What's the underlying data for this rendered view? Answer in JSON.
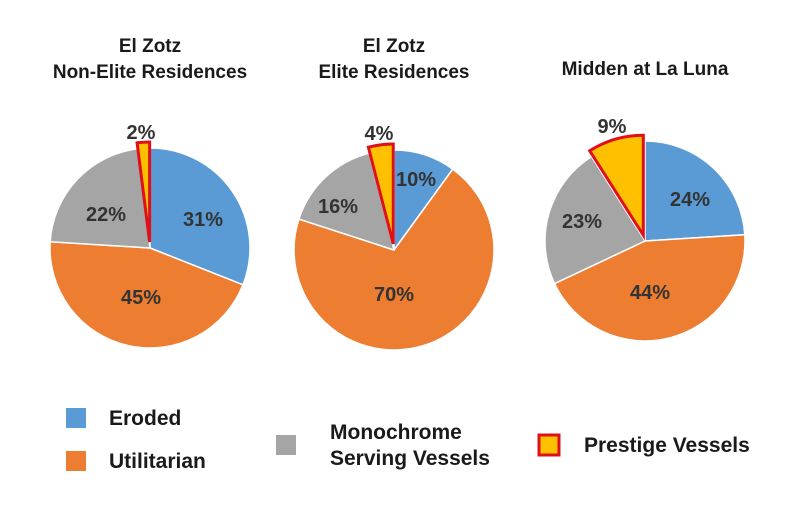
{
  "chart_data": [
    {
      "type": "pie",
      "title": [
        "El Zotz",
        "Non-Elite Residences"
      ],
      "slices": [
        {
          "category": "Eroded",
          "value": 31,
          "label": "31%"
        },
        {
          "category": "Utilitarian",
          "value": 45,
          "label": "45%"
        },
        {
          "category": "Monochrome Serving Vessels",
          "value": 22,
          "label": "22%"
        },
        {
          "category": "Prestige Vessels",
          "value": 2,
          "label": "2%"
        }
      ]
    },
    {
      "type": "pie",
      "title": [
        "El Zotz",
        "Elite Residences"
      ],
      "slices": [
        {
          "category": "Eroded",
          "value": 10,
          "label": "10%"
        },
        {
          "category": "Utilitarian",
          "value": 70,
          "label": "70%"
        },
        {
          "category": "Monochrome Serving Vessels",
          "value": 16,
          "label": "16%"
        },
        {
          "category": "Prestige Vessels",
          "value": 4,
          "label": "4%"
        }
      ]
    },
    {
      "type": "pie",
      "title": [
        "Midden at La Luna"
      ],
      "slices": [
        {
          "category": "Eroded",
          "value": 24,
          "label": "24%"
        },
        {
          "category": "Utilitarian",
          "value": 44,
          "label": "44%"
        },
        {
          "category": "Monochrome Serving Vessels",
          "value": 23,
          "label": "23%"
        },
        {
          "category": "Prestige Vessels",
          "value": 9,
          "label": "9%"
        }
      ]
    }
  ],
  "legend": {
    "placement": "bottom",
    "items": [
      {
        "category": "Eroded",
        "label": [
          "Eroded"
        ],
        "color": "#5b9bd5"
      },
      {
        "category": "Utilitarian",
        "label": [
          "Utilitarian"
        ],
        "color": "#ed7d31"
      },
      {
        "category": "Monochrome Serving Vessels",
        "label": [
          "Monochrome",
          "Serving Vessels"
        ],
        "color": "#a5a5a5"
      },
      {
        "category": "Prestige Vessels",
        "label": [
          "Prestige Vessels"
        ],
        "color": "#ffc000",
        "outline": "#e0101a"
      }
    ]
  },
  "colors": {
    "Eroded": "#5b9bd5",
    "Utilitarian": "#ed7d31",
    "Monochrome Serving Vessels": "#a5a5a5",
    "Prestige Vessels": "#ffc000",
    "highlight_outline": "#e0101a"
  }
}
